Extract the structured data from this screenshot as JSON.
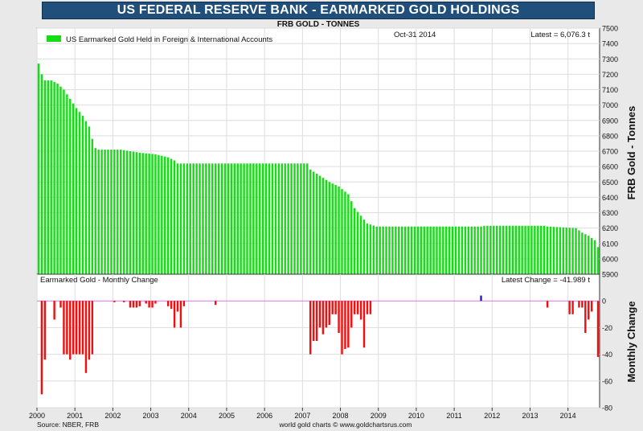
{
  "title": "US FEDERAL RESERVE BANK - EARMARKED GOLD HOLDINGS",
  "top_panel": {
    "subtitle": "FRB GOLD - TONNES",
    "legend": "US Earmarked Gold Held in Foreign & International Accounts",
    "date": "Oct-31  2014",
    "latest": "Latest = 6,076.3 t",
    "ylabel": "FRB Gold - Tonnes"
  },
  "bottom_panel": {
    "label": "Earmarked Gold - Monthly Change",
    "latest_change": "Latest Change = -41.989 t",
    "ylabel": "Monthly Change"
  },
  "footer": {
    "source": "Source: NBER, FRB",
    "credit": "world gold charts © www.goldchartsrus.com"
  },
  "colors": {
    "title_bg": "#1f4f7a",
    "gold_bars": "#15dd15",
    "change_neg": "#ee1111",
    "change_pos": "#2222cc",
    "zero_line": "#e070e0"
  },
  "chart_data": [
    {
      "type": "bar",
      "title": "FRB GOLD - TONNES",
      "ylabel": "FRB Gold - Tonnes",
      "ylim": [
        5900,
        7500
      ],
      "yticks": [
        5900,
        6000,
        6100,
        6200,
        6300,
        6400,
        6500,
        6600,
        6700,
        6800,
        6900,
        7000,
        7100,
        7200,
        7300,
        7400,
        7500
      ],
      "x_start": "2000-01",
      "x_end": "2014-10",
      "x_tick_labels": [
        "2000",
        "2001",
        "2002",
        "2003",
        "2004",
        "2005",
        "2006",
        "2007",
        "2008",
        "2009",
        "2010",
        "2011",
        "2012",
        "2013",
        "2014"
      ],
      "legend_position": "top-left",
      "series": [
        {
          "name": "US Earmarked Gold Held in Foreign & International Accounts",
          "breakpoints": [
            [
              "2000-01",
              7270
            ],
            [
              "2000-02",
              7200
            ],
            [
              "2000-03",
              7160
            ],
            [
              "2000-05",
              7160
            ],
            [
              "2000-07",
              7140
            ],
            [
              "2000-09",
              7100
            ],
            [
              "2000-11",
              7040
            ],
            [
              "2001-01",
              6980
            ],
            [
              "2001-03",
              6930
            ],
            [
              "2001-05",
              6860
            ],
            [
              "2001-06",
              6780
            ],
            [
              "2001-07",
              6720
            ],
            [
              "2001-08",
              6710
            ],
            [
              "2002-03",
              6710
            ],
            [
              "2002-09",
              6690
            ],
            [
              "2003-02",
              6680
            ],
            [
              "2003-06",
              6660
            ],
            [
              "2003-08",
              6640
            ],
            [
              "2003-09",
              6620
            ],
            [
              "2007-02",
              6620
            ],
            [
              "2007-03",
              6580
            ],
            [
              "2007-06",
              6540
            ],
            [
              "2007-09",
              6500
            ],
            [
              "2007-12",
              6470
            ],
            [
              "2008-03",
              6420
            ],
            [
              "2008-05",
              6330
            ],
            [
              "2008-09",
              6230
            ],
            [
              "2008-12",
              6210
            ],
            [
              "2011-09",
              6210
            ],
            [
              "2011-10",
              6215
            ],
            [
              "2013-05",
              6215
            ],
            [
              "2013-06",
              6210
            ],
            [
              "2014-03",
              6200
            ],
            [
              "2014-05",
              6170
            ],
            [
              "2014-07",
              6150
            ],
            [
              "2014-09",
              6120
            ],
            [
              "2014-10",
              6076.3
            ]
          ]
        }
      ]
    },
    {
      "type": "bar",
      "title": "Earmarked Gold - Monthly Change",
      "ylabel": "Monthly Change",
      "ylim": [
        -80,
        20
      ],
      "yticks": [
        -80,
        -60,
        -40,
        -20,
        0
      ],
      "series": [
        {
          "name": "Earmarked Gold - Monthly Change",
          "changes": [
            [
              "2000-02",
              -70
            ],
            [
              "2000-03",
              -44
            ],
            [
              "2000-06",
              -14
            ],
            [
              "2000-08",
              -5
            ],
            [
              "2000-09",
              -40
            ],
            [
              "2000-10",
              -40
            ],
            [
              "2000-11",
              -44
            ],
            [
              "2000-12",
              -40
            ],
            [
              "2001-01",
              -40
            ],
            [
              "2001-02",
              -40
            ],
            [
              "2001-03",
              -40
            ],
            [
              "2001-04",
              -54
            ],
            [
              "2001-05",
              -44
            ],
            [
              "2001-06",
              -40
            ],
            [
              "2002-01",
              -1
            ],
            [
              "2002-04",
              -1
            ],
            [
              "2002-06",
              -5
            ],
            [
              "2002-07",
              -5
            ],
            [
              "2002-08",
              -5
            ],
            [
              "2002-09",
              -4
            ],
            [
              "2002-11",
              -2
            ],
            [
              "2002-12",
              -5
            ],
            [
              "2003-01",
              -5
            ],
            [
              "2003-02",
              -2
            ],
            [
              "2003-06",
              -4
            ],
            [
              "2003-07",
              -6
            ],
            [
              "2003-08",
              -20
            ],
            [
              "2003-09",
              -8
            ],
            [
              "2003-10",
              -20
            ],
            [
              "2003-11",
              -4
            ],
            [
              "2004-09",
              -3
            ],
            [
              "2007-03",
              -40
            ],
            [
              "2007-04",
              -30
            ],
            [
              "2007-05",
              -30
            ],
            [
              "2007-06",
              -20
            ],
            [
              "2007-07",
              -25
            ],
            [
              "2007-08",
              -20
            ],
            [
              "2007-09",
              -18
            ],
            [
              "2007-10",
              -10
            ],
            [
              "2007-11",
              -10
            ],
            [
              "2007-12",
              -24
            ],
            [
              "2008-01",
              -40
            ],
            [
              "2008-02",
              -36
            ],
            [
              "2008-03",
              -35
            ],
            [
              "2008-04",
              -20
            ],
            [
              "2008-05",
              -10
            ],
            [
              "2008-06",
              -10
            ],
            [
              "2008-07",
              -14
            ],
            [
              "2008-08",
              -35
            ],
            [
              "2008-09",
              -10
            ],
            [
              "2008-10",
              -10
            ],
            [
              "2011-09",
              4
            ],
            [
              "2013-06",
              -5
            ],
            [
              "2014-01",
              -10
            ],
            [
              "2014-02",
              -10
            ],
            [
              "2014-04",
              -5
            ],
            [
              "2014-05",
              -5
            ],
            [
              "2014-06",
              -24
            ],
            [
              "2014-07",
              -14
            ],
            [
              "2014-08",
              -8
            ],
            [
              "2014-10",
              -41.989
            ]
          ]
        }
      ]
    }
  ]
}
